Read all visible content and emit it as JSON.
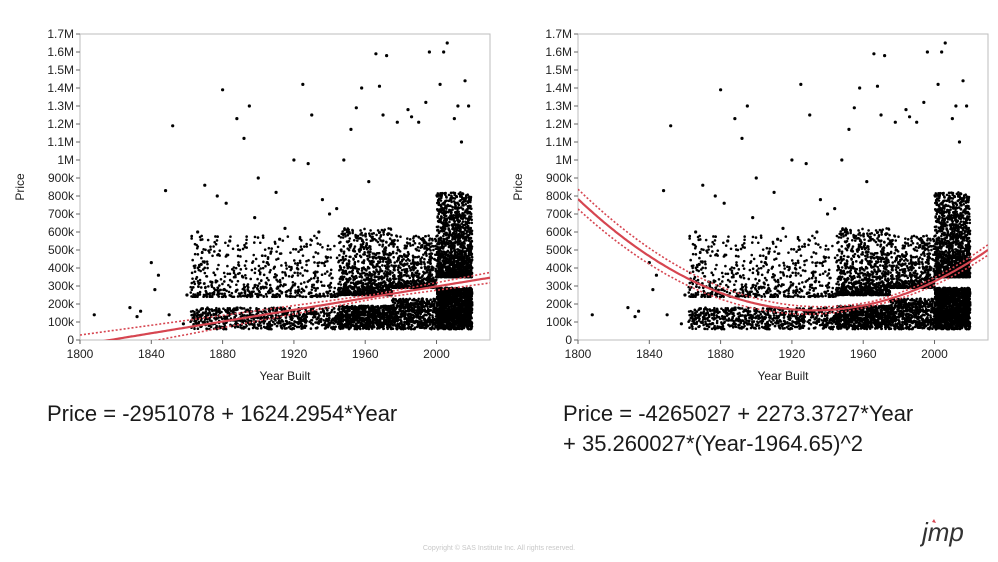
{
  "chart_data": [
    {
      "type": "scatter",
      "title": "",
      "xlabel": "Year Built",
      "ylabel": "Price",
      "xlim": [
        1800,
        2030
      ],
      "ylim": [
        0,
        1700000
      ],
      "x_ticks": [
        1800,
        1840,
        1880,
        1920,
        1960,
        2000
      ],
      "y_ticks": [
        {
          "value": 0,
          "label": "0"
        },
        {
          "value": 100000,
          "label": "100k"
        },
        {
          "value": 200000,
          "label": "200k"
        },
        {
          "value": 300000,
          "label": "300k"
        },
        {
          "value": 400000,
          "label": "400k"
        },
        {
          "value": 500000,
          "label": "500k"
        },
        {
          "value": 600000,
          "label": "600k"
        },
        {
          "value": 700000,
          "label": "700k"
        },
        {
          "value": 800000,
          "label": "800k"
        },
        {
          "value": 900000,
          "label": "900k"
        },
        {
          "value": 1000000,
          "label": "1M"
        },
        {
          "value": 1100000,
          "label": "1.1M"
        },
        {
          "value": 1200000,
          "label": "1.2M"
        },
        {
          "value": 1300000,
          "label": "1.3M"
        },
        {
          "value": 1400000,
          "label": "1.4M"
        },
        {
          "value": 1500000,
          "label": "1.5M"
        },
        {
          "value": 1600000,
          "label": "1.6M"
        },
        {
          "value": 1700000,
          "label": "1.7M"
        }
      ],
      "fit": {
        "kind": "linear",
        "intercept": -2951078,
        "slope": 1624.2954,
        "center": 0,
        "quad": 0,
        "color": "#d64550"
      },
      "equation_lines": [
        "Price = -2951078 + 1624.2954*Year"
      ],
      "series": [
        {
          "points": [
            [
              1808,
              140000
            ],
            [
              1828,
              180000
            ],
            [
              1834,
              160000
            ],
            [
              1840,
              430000
            ],
            [
              1842,
              280000
            ],
            [
              1844,
              360000
            ],
            [
              1848,
              830000
            ],
            [
              1850,
              140000
            ],
            [
              1852,
              1190000
            ],
            [
              1858,
              90000
            ],
            [
              1866,
              600000
            ],
            [
              1870,
              860000
            ],
            [
              1874,
              320000
            ],
            [
              1877,
              800000
            ],
            [
              1880,
              1390000
            ],
            [
              1884,
              550000
            ],
            [
              1888,
              1230000
            ],
            [
              1892,
              1120000
            ],
            [
              1895,
              1300000
            ],
            [
              1900,
              900000
            ],
            [
              1905,
              430000
            ],
            [
              1910,
              820000
            ],
            [
              1915,
              620000
            ],
            [
              1920,
              1000000
            ],
            [
              1925,
              1420000
            ],
            [
              1928,
              980000
            ],
            [
              1930,
              1250000
            ],
            [
              1936,
              780000
            ],
            [
              1940,
              700000
            ],
            [
              1948,
              1000000
            ],
            [
              1952,
              1170000
            ],
            [
              1955,
              1290000
            ],
            [
              1958,
              1400000
            ],
            [
              1962,
              880000
            ],
            [
              1966,
              1590000
            ],
            [
              1968,
              1410000
            ],
            [
              1970,
              1250000
            ],
            [
              1972,
              1580000
            ],
            [
              1978,
              1210000
            ],
            [
              1984,
              1280000
            ],
            [
              1986,
              1240000
            ],
            [
              1990,
              1210000
            ],
            [
              1994,
              1320000
            ],
            [
              1996,
              1600000
            ],
            [
              2002,
              1420000
            ],
            [
              2004,
              1600000
            ],
            [
              2006,
              1650000
            ],
            [
              2010,
              1230000
            ],
            [
              2012,
              1300000
            ],
            [
              2014,
              1100000
            ],
            [
              2016,
              1440000
            ],
            [
              2018,
              1300000
            ],
            [
              1832,
              130000
            ],
            [
              1860,
              250000
            ],
            [
              1868,
              420000
            ],
            [
              1882,
              760000
            ],
            [
              1898,
              680000
            ],
            [
              1912,
              560000
            ],
            [
              1934,
              600000
            ],
            [
              1944,
              730000
            ]
          ]
        }
      ]
    },
    {
      "type": "scatter",
      "title": "",
      "xlabel": "Year Built",
      "ylabel": "Price",
      "xlim": [
        1800,
        2030
      ],
      "ylim": [
        0,
        1700000
      ],
      "x_ticks": [
        1800,
        1840,
        1880,
        1920,
        1960,
        2000
      ],
      "y_ticks": [
        {
          "value": 0,
          "label": "0"
        },
        {
          "value": 100000,
          "label": "100k"
        },
        {
          "value": 200000,
          "label": "200k"
        },
        {
          "value": 300000,
          "label": "300k"
        },
        {
          "value": 400000,
          "label": "400k"
        },
        {
          "value": 500000,
          "label": "500k"
        },
        {
          "value": 600000,
          "label": "600k"
        },
        {
          "value": 700000,
          "label": "700k"
        },
        {
          "value": 800000,
          "label": "800k"
        },
        {
          "value": 900000,
          "label": "900k"
        },
        {
          "value": 1000000,
          "label": "1M"
        },
        {
          "value": 1100000,
          "label": "1.1M"
        },
        {
          "value": 1200000,
          "label": "1.2M"
        },
        {
          "value": 1300000,
          "label": "1.3M"
        },
        {
          "value": 1400000,
          "label": "1.4M"
        },
        {
          "value": 1500000,
          "label": "1.5M"
        },
        {
          "value": 1600000,
          "label": "1.6M"
        },
        {
          "value": 1700000,
          "label": "1.7M"
        }
      ],
      "fit": {
        "kind": "quadratic",
        "intercept": -4265027,
        "slope": 2273.3727,
        "center": 1964.65,
        "quad": 35.260027,
        "color": "#d64550"
      },
      "equation_lines": [
        "Price = -4265027 + 2273.3727*Year",
        "+ 35.260027*(Year-1964.65)^2"
      ],
      "series": [
        {
          "points": [
            [
              1808,
              140000
            ],
            [
              1828,
              180000
            ],
            [
              1834,
              160000
            ],
            [
              1840,
              430000
            ],
            [
              1842,
              280000
            ],
            [
              1844,
              360000
            ],
            [
              1848,
              830000
            ],
            [
              1850,
              140000
            ],
            [
              1852,
              1190000
            ],
            [
              1858,
              90000
            ],
            [
              1866,
              600000
            ],
            [
              1870,
              860000
            ],
            [
              1874,
              320000
            ],
            [
              1877,
              800000
            ],
            [
              1880,
              1390000
            ],
            [
              1884,
              550000
            ],
            [
              1888,
              1230000
            ],
            [
              1892,
              1120000
            ],
            [
              1895,
              1300000
            ],
            [
              1900,
              900000
            ],
            [
              1905,
              430000
            ],
            [
              1910,
              820000
            ],
            [
              1915,
              620000
            ],
            [
              1920,
              1000000
            ],
            [
              1925,
              1420000
            ],
            [
              1928,
              980000
            ],
            [
              1930,
              1250000
            ],
            [
              1936,
              780000
            ],
            [
              1940,
              700000
            ],
            [
              1948,
              1000000
            ],
            [
              1952,
              1170000
            ],
            [
              1955,
              1290000
            ],
            [
              1958,
              1400000
            ],
            [
              1962,
              880000
            ],
            [
              1966,
              1590000
            ],
            [
              1968,
              1410000
            ],
            [
              1970,
              1250000
            ],
            [
              1972,
              1580000
            ],
            [
              1978,
              1210000
            ],
            [
              1984,
              1280000
            ],
            [
              1986,
              1240000
            ],
            [
              1990,
              1210000
            ],
            [
              1994,
              1320000
            ],
            [
              1996,
              1600000
            ],
            [
              2002,
              1420000
            ],
            [
              2004,
              1600000
            ],
            [
              2006,
              1650000
            ],
            [
              2010,
              1230000
            ],
            [
              2012,
              1300000
            ],
            [
              2014,
              1100000
            ],
            [
              2016,
              1440000
            ],
            [
              2018,
              1300000
            ],
            [
              1832,
              130000
            ],
            [
              1860,
              250000
            ],
            [
              1868,
              420000
            ],
            [
              1882,
              760000
            ],
            [
              1898,
              680000
            ],
            [
              1912,
              560000
            ],
            [
              1934,
              600000
            ],
            [
              1944,
              730000
            ]
          ]
        }
      ]
    }
  ],
  "footer": {
    "copyright": "Copyright © SAS Institute Inc. All rights reserved.",
    "logo_text": "jmp"
  }
}
